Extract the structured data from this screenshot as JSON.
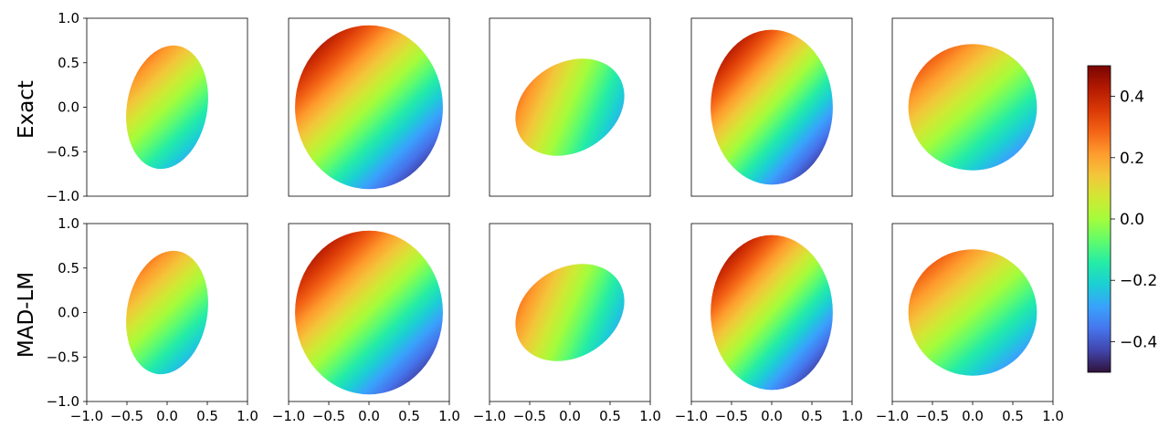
{
  "chart_data": {
    "type": "scatter",
    "description_rows": [
      "Exact",
      "MAD-LM"
    ],
    "rows": [
      {
        "label": "Exact",
        "panels": [
          {
            "ellipse": {
              "cx": 0.0,
              "cy": 0.0,
              "rx": 0.5,
              "ry": 0.7,
              "angle_deg": -10
            },
            "value_range": [
              -0.3,
              0.3
            ]
          },
          {
            "ellipse": {
              "cx": 0.0,
              "cy": 0.0,
              "rx": 0.92,
              "ry": 0.92,
              "angle_deg": 0
            },
            "value_range": [
              -0.5,
              0.5
            ]
          },
          {
            "ellipse": {
              "cx": 0.0,
              "cy": 0.0,
              "rx": 0.72,
              "ry": 0.5,
              "angle_deg": 32
            },
            "value_range": [
              -0.3,
              0.3
            ]
          },
          {
            "ellipse": {
              "cx": 0.0,
              "cy": 0.0,
              "rx": 0.76,
              "ry": 0.87,
              "angle_deg": 0
            },
            "value_range": [
              -0.5,
              0.5
            ]
          },
          {
            "ellipse": {
              "cx": 0.0,
              "cy": 0.0,
              "rx": 0.8,
              "ry": 0.71,
              "angle_deg": 0
            },
            "value_range": [
              -0.35,
              0.35
            ]
          }
        ]
      },
      {
        "label": "MAD-LM",
        "panels": [
          {
            "ellipse": {
              "cx": 0.0,
              "cy": 0.0,
              "rx": 0.5,
              "ry": 0.7,
              "angle_deg": -10
            },
            "value_range": [
              -0.3,
              0.3
            ]
          },
          {
            "ellipse": {
              "cx": 0.0,
              "cy": 0.0,
              "rx": 0.92,
              "ry": 0.92,
              "angle_deg": 0
            },
            "value_range": [
              -0.5,
              0.5
            ]
          },
          {
            "ellipse": {
              "cx": 0.0,
              "cy": 0.0,
              "rx": 0.72,
              "ry": 0.5,
              "angle_deg": 32
            },
            "value_range": [
              -0.3,
              0.3
            ]
          },
          {
            "ellipse": {
              "cx": 0.0,
              "cy": 0.0,
              "rx": 0.76,
              "ry": 0.87,
              "angle_deg": 0
            },
            "value_range": [
              -0.5,
              0.5
            ]
          },
          {
            "ellipse": {
              "cx": 0.0,
              "cy": 0.0,
              "rx": 0.8,
              "ry": 0.71,
              "angle_deg": 0
            },
            "value_range": [
              -0.35,
              0.35
            ]
          }
        ]
      }
    ],
    "xlim": [
      -1.0,
      1.0
    ],
    "ylim": [
      -1.0,
      1.0
    ],
    "x_ticks": [
      "−1.0",
      "−0.5",
      "0.0",
      "0.5",
      "1.0"
    ],
    "y_ticks": [
      "1.0",
      "0.5",
      "0.0",
      "−0.5",
      "−1.0"
    ],
    "colorbar": {
      "colormap": "turbo",
      "range": [
        -0.5,
        0.5
      ],
      "ticks": [
        "0.4",
        "0.2",
        "0.0",
        "−0.2",
        "−0.4"
      ],
      "tick_values": [
        0.4,
        0.2,
        0.0,
        -0.2,
        -0.4
      ]
    },
    "grid": false,
    "xlabel": "",
    "ylabel": ""
  }
}
